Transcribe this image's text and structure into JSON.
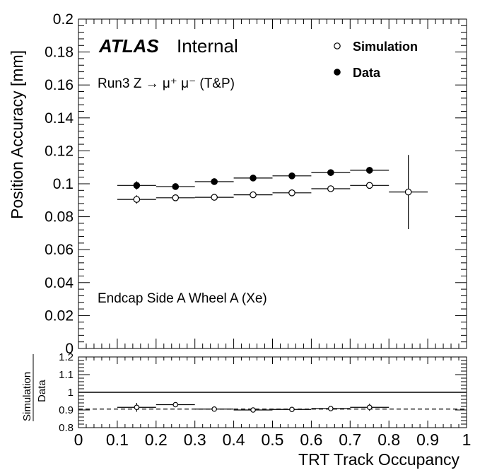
{
  "chart_data": [
    {
      "type": "scatter",
      "experiment": "ATLAS",
      "experiment_status": "Internal",
      "process_label": "Run3 Z → μ⁺ μ⁻ (T&P)",
      "region_label": "Endcap Side A Wheel A (Xe)",
      "ylabel": "Position Accuracy [mm]",
      "ylim": [
        0,
        0.2
      ],
      "yticks": [
        "0",
        "0.02",
        "0.04",
        "0.06",
        "0.08",
        "0.1",
        "0.12",
        "0.14",
        "0.16",
        "0.18",
        "0.2"
      ],
      "legend_placement": "top-right",
      "series": [
        {
          "name": "Simulation",
          "marker": "open-circle",
          "points": [
            {
              "x": 0.15,
              "xlo": 0.1,
              "xhi": 0.2,
              "y": 0.0905,
              "yerr": 0.0025
            },
            {
              "x": 0.25,
              "xlo": 0.2,
              "xhi": 0.3,
              "y": 0.0915,
              "yerr": 0.0008
            },
            {
              "x": 0.35,
              "xlo": 0.3,
              "xhi": 0.4,
              "y": 0.0918,
              "yerr": 0.0006
            },
            {
              "x": 0.45,
              "xlo": 0.4,
              "xhi": 0.5,
              "y": 0.0933,
              "yerr": 0.0006
            },
            {
              "x": 0.55,
              "xlo": 0.5,
              "xhi": 0.6,
              "y": 0.0945,
              "yerr": 0.0006
            },
            {
              "x": 0.65,
              "xlo": 0.6,
              "xhi": 0.7,
              "y": 0.097,
              "yerr": 0.0006
            },
            {
              "x": 0.75,
              "xlo": 0.7,
              "xhi": 0.8,
              "y": 0.099,
              "yerr": 0.002
            },
            {
              "x": 0.85,
              "xlo": 0.8,
              "xhi": 0.9,
              "y": 0.095,
              "yerr": 0.0225
            }
          ]
        },
        {
          "name": "Data",
          "marker": "filled-circle",
          "points": [
            {
              "x": 0.15,
              "xlo": 0.1,
              "xhi": 0.2,
              "y": 0.099,
              "yerr": 0.0025
            },
            {
              "x": 0.25,
              "xlo": 0.2,
              "xhi": 0.3,
              "y": 0.0983,
              "yerr": 0.0008
            },
            {
              "x": 0.35,
              "xlo": 0.3,
              "xhi": 0.4,
              "y": 0.1013,
              "yerr": 0.0008
            },
            {
              "x": 0.45,
              "xlo": 0.4,
              "xhi": 0.5,
              "y": 0.1035,
              "yerr": 0.0008
            },
            {
              "x": 0.55,
              "xlo": 0.5,
              "xhi": 0.6,
              "y": 0.1048,
              "yerr": 0.0008
            },
            {
              "x": 0.65,
              "xlo": 0.6,
              "xhi": 0.7,
              "y": 0.1068,
              "yerr": 0.0008
            },
            {
              "x": 0.75,
              "xlo": 0.7,
              "xhi": 0.8,
              "y": 0.1082,
              "yerr": 0.002
            }
          ]
        }
      ]
    },
    {
      "type": "scatter",
      "ylabel_numerator": "Simulation",
      "ylabel_denominator": "Data",
      "xlabel": "TRT Track Occupancy",
      "xlim": [
        0,
        1
      ],
      "xticks": [
        "0",
        "0.1",
        "0.2",
        "0.3",
        "0.4",
        "0.5",
        "0.6",
        "0.7",
        "0.8",
        "0.9",
        "1"
      ],
      "ylim": [
        0.8,
        1.2
      ],
      "yticks": [
        "0.8",
        "0.9",
        "1",
        "1.1",
        "1.2"
      ],
      "reference_lines": [
        {
          "y": 1.0,
          "style": "solid"
        },
        {
          "y": 0.905,
          "style": "dashed"
        }
      ],
      "series": [
        {
          "name": "Simulation/Data",
          "marker": "open-circle",
          "points": [
            {
              "x": 0.15,
              "xlo": 0.1,
              "xhi": 0.2,
              "y": 0.915,
              "yerr": 0.025
            },
            {
              "x": 0.25,
              "xlo": 0.2,
              "xhi": 0.3,
              "y": 0.93,
              "yerr": 0.005
            },
            {
              "x": 0.35,
              "xlo": 0.3,
              "xhi": 0.4,
              "y": 0.905,
              "yerr": 0.004
            },
            {
              "x": 0.45,
              "xlo": 0.4,
              "xhi": 0.5,
              "y": 0.9,
              "yerr": 0.004
            },
            {
              "x": 0.55,
              "xlo": 0.5,
              "xhi": 0.6,
              "y": 0.903,
              "yerr": 0.004
            },
            {
              "x": 0.65,
              "xlo": 0.6,
              "xhi": 0.7,
              "y": 0.908,
              "yerr": 0.004
            },
            {
              "x": 0.75,
              "xlo": 0.7,
              "xhi": 0.8,
              "y": 0.915,
              "yerr": 0.02
            }
          ]
        }
      ]
    }
  ]
}
